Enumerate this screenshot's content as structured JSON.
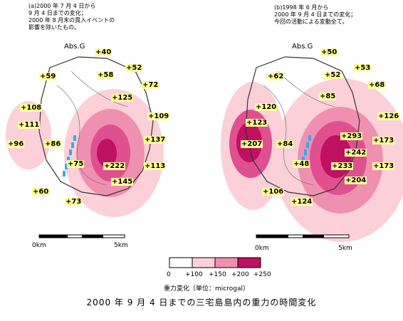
{
  "panel_a": {
    "caption": "(a)2000 年 7 月 4 日から\n9 月 4 日までの変化；\n2000 年 8 月末の貫入イベントの\n影響を除いたもの。",
    "abs_label": "Abs.G",
    "labels": [
      "+40",
      "+59",
      "+58",
      "+52",
      "+72",
      "+125",
      "+108",
      "+109",
      "+111",
      "+96",
      "+86",
      "+137",
      "+75",
      "+222",
      "+113",
      "+145",
      "+60",
      "+73"
    ]
  },
  "panel_b": {
    "caption": "(b)1998 年 6 月から\n2000 年 9 月 4 日までの変化；\n今回の活動による変動全て。",
    "abs_label": "Abs.G",
    "labels": [
      "+50",
      "+62",
      "+52",
      "+53",
      "+68",
      "+85",
      "+120",
      "+126",
      "+123",
      "+293",
      "+207",
      "+84",
      "+242",
      "+173",
      "+48",
      "+233",
      "+173",
      "+204",
      "+106",
      "+124"
    ]
  },
  "scale_a": {
    "left": "0km",
    "right": "5km"
  },
  "scale_b": {
    "left": "0km",
    "right": "5km"
  },
  "legend": {
    "ticks": [
      "0",
      "+100",
      "+150",
      "+200",
      "+250"
    ],
    "title": "重力変化（単位：microgal）",
    "colors": [
      "#ffffff",
      "#fbd0d8",
      "#f090b0",
      "#e05090",
      "#c01060"
    ]
  },
  "figure_title": "2000 年 9 月 4 日までの三宅島島内の重力の時間変化"
}
